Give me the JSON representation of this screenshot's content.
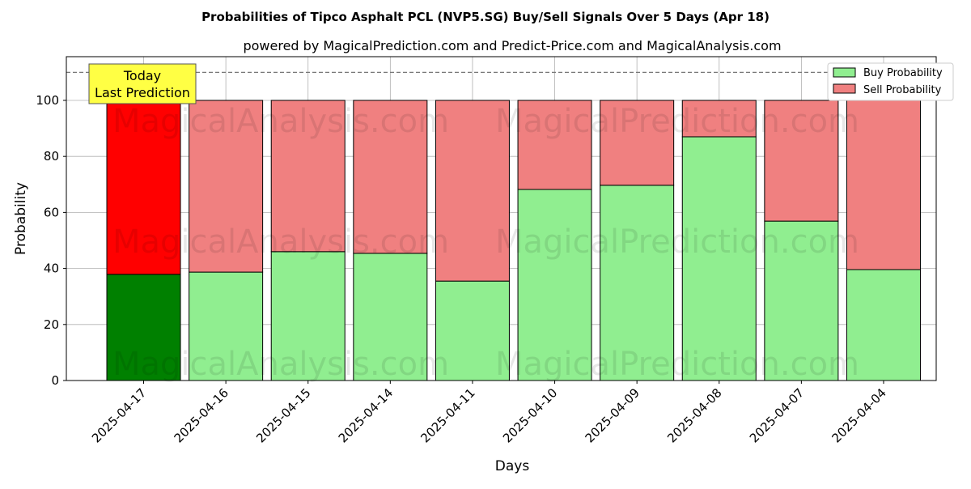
{
  "chart_data": {
    "type": "bar",
    "stacked": true,
    "title": "Probabilities of Tipco Asphalt PCL (NVP5.SG) Buy/Sell Signals Over 5 Days (Apr 18)",
    "subtitle": "powered by MagicalPrediction.com and Predict-Price.com and MagicalAnalysis.com",
    "xlabel": "Days",
    "ylabel": "Probability",
    "ylim": [
      0,
      115.6
    ],
    "yticks": [
      0,
      20,
      40,
      60,
      80,
      100
    ],
    "grid": true,
    "categories": [
      "2025-04-17",
      "2025-04-16",
      "2025-04-15",
      "2025-04-14",
      "2025-04-11",
      "2025-04-10",
      "2025-04-09",
      "2025-04-08",
      "2025-04-07",
      "2025-04-04"
    ],
    "series": [
      {
        "name": "Buy Probability",
        "color": "#90ee90",
        "highlight_color": "#008000",
        "values": [
          37.9,
          38.7,
          46.0,
          45.4,
          35.5,
          68.2,
          69.7,
          87.0,
          56.9,
          39.6
        ]
      },
      {
        "name": "Sell Probability",
        "color": "#f08080",
        "highlight_color": "#ff0000",
        "values": [
          62.1,
          61.3,
          54.0,
          54.6,
          64.5,
          31.8,
          30.3,
          13.0,
          43.1,
          60.4
        ]
      }
    ],
    "reference_line": 110,
    "annotation": {
      "line1": "Today",
      "line2": "Last Prediction"
    },
    "legend_position": "top-right",
    "watermarks": [
      "MagicalAnalysis.com",
      "MagicalPrediction.com"
    ]
  }
}
